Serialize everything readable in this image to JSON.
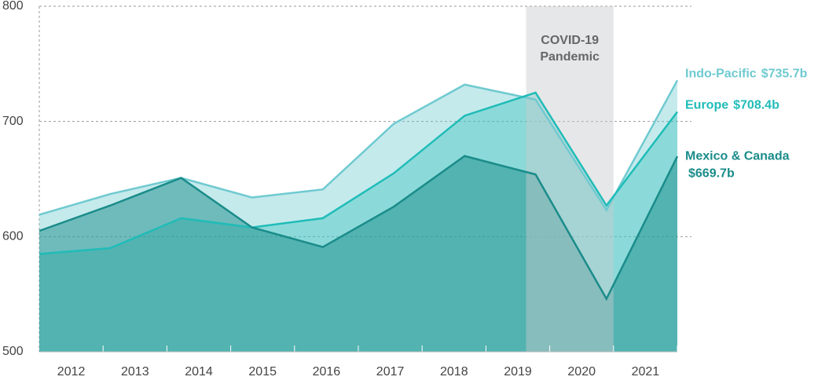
{
  "chart_data": {
    "type": "area",
    "categories": [
      "2012",
      "2013",
      "2014",
      "2015",
      "2016",
      "2017",
      "2018",
      "2019",
      "2020",
      "2021"
    ],
    "series": [
      {
        "name": "Indo-Pacific",
        "color": "#6fcad0",
        "values": [
          619,
          637,
          651,
          634,
          641,
          698,
          732,
          719,
          623,
          735.7
        ],
        "value_labels": [
          null,
          null,
          null,
          null,
          null,
          null,
          null,
          null,
          null,
          "$735.7b"
        ]
      },
      {
        "name": "Europe",
        "color": "#20bcb8",
        "values": [
          585,
          590,
          616,
          608,
          616,
          655,
          705,
          725,
          627,
          708.4
        ],
        "value_labels": [
          null,
          null,
          null,
          null,
          null,
          null,
          null,
          null,
          null,
          "$708.4b"
        ]
      },
      {
        "name": "Mexico & Canada",
        "color": "#1a8c8a",
        "values": [
          605,
          627,
          651,
          608,
          591,
          626,
          670,
          654,
          546,
          669.7
        ],
        "value_labels": [
          null,
          null,
          null,
          null,
          null,
          null,
          null,
          null,
          null,
          "$669.7b"
        ]
      }
    ],
    "ylim": [
      500,
      800
    ],
    "yticks": [
      500,
      600,
      700,
      800
    ],
    "grid": true,
    "annotations": [
      {
        "lines": [
          "COVID-19",
          "Pandemic"
        ],
        "from": "2019",
        "to": "2020"
      }
    ]
  }
}
